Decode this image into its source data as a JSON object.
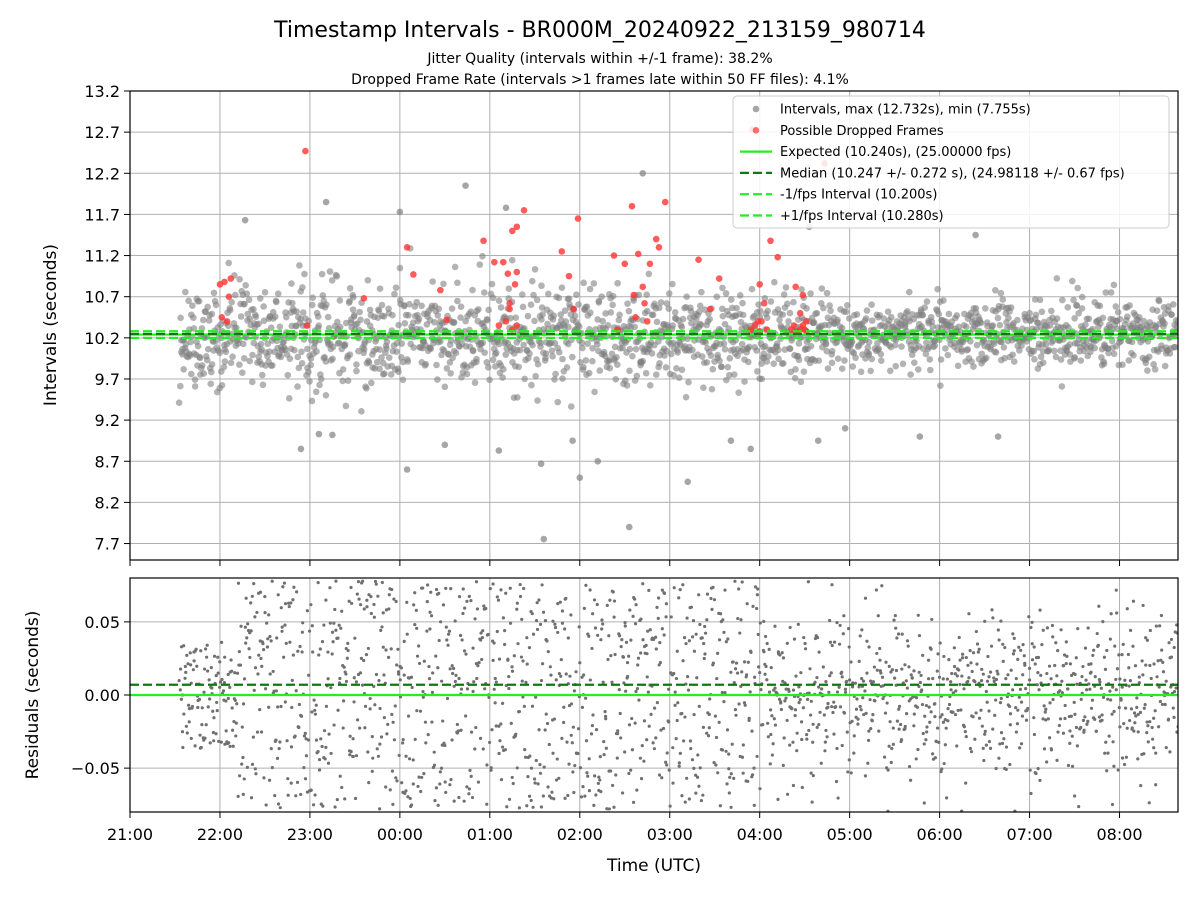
{
  "figure": {
    "title": "Timestamp Intervals - BR000M_20240922_213159_980714",
    "subtitle_1": "Jitter Quality (intervals within +/-1 frame): 38.2%",
    "subtitle_2": "Dropped Frame Rate (intervals >1 frames late within 50 FF files): 4.1%"
  },
  "colors": {
    "intervals": "#808080",
    "dropped": "#ff3333",
    "expected": "#22ee22",
    "median": "#117711",
    "grid": "#b0b0b0"
  },
  "chart_data": [
    {
      "type": "scatter",
      "ylabel": "Intervals (seconds)",
      "ylim": [
        7.5,
        13.2
      ],
      "yticks": [
        "7.7",
        "8.2",
        "8.7",
        "9.2",
        "9.7",
        "10.2",
        "10.7",
        "11.2",
        "11.7",
        "12.2",
        "12.7",
        "13.2"
      ],
      "x_unit": "hours since 21:00 UTC",
      "xlim": [
        0,
        11.65
      ],
      "grid": true,
      "legend_position": "top-right",
      "legend": [
        {
          "label": "Intervals, max (12.732s), min (7.755s)",
          "kind": "marker",
          "color": "#808080"
        },
        {
          "label": "Possible Dropped Frames",
          "kind": "marker",
          "color": "#ff3333"
        },
        {
          "label": "Expected (10.240s), (25.00000 fps)",
          "kind": "solid",
          "color": "#22ee22"
        },
        {
          "label": "Median (10.247 +/- 0.272 s), (24.98118 +/- 0.67 fps)",
          "kind": "dashed",
          "color": "#117711"
        },
        {
          "label": "-1/fps Interval (10.200s)",
          "kind": "dashed",
          "color": "#22ee22"
        },
        {
          "label": "+1/fps Interval (10.280s)",
          "kind": "dashed",
          "color": "#22ee22"
        }
      ],
      "series": [
        {
          "name": "Intervals",
          "point_count_approx": 1900,
          "x_range": [
            0.55,
            11.65
          ],
          "center": 10.24,
          "spread": 0.3,
          "max": 12.732,
          "min": 7.755,
          "sample_points": [
            {
              "x": 1.28,
              "y": 11.63
            },
            {
              "x": 1.9,
              "y": 8.85
            },
            {
              "x": 2.1,
              "y": 9.03
            },
            {
              "x": 2.18,
              "y": 11.85
            },
            {
              "x": 2.25,
              "y": 9.02
            },
            {
              "x": 3.0,
              "y": 11.73
            },
            {
              "x": 3.08,
              "y": 8.6
            },
            {
              "x": 3.5,
              "y": 8.9
            },
            {
              "x": 3.73,
              "y": 12.05
            },
            {
              "x": 4.1,
              "y": 8.83
            },
            {
              "x": 4.18,
              "y": 11.78
            },
            {
              "x": 4.57,
              "y": 8.67
            },
            {
              "x": 4.6,
              "y": 7.755
            },
            {
              "x": 4.92,
              "y": 8.95
            },
            {
              "x": 5.0,
              "y": 8.5
            },
            {
              "x": 5.2,
              "y": 8.7
            },
            {
              "x": 5.55,
              "y": 7.9
            },
            {
              "x": 5.7,
              "y": 12.2
            },
            {
              "x": 6.2,
              "y": 8.45
            },
            {
              "x": 6.68,
              "y": 8.95
            },
            {
              "x": 6.9,
              "y": 8.85
            },
            {
              "x": 7.55,
              "y": 11.55
            },
            {
              "x": 7.65,
              "y": 8.95
            },
            {
              "x": 7.95,
              "y": 9.1
            },
            {
              "x": 8.78,
              "y": 9.0
            },
            {
              "x": 9.4,
              "y": 11.45
            },
            {
              "x": 9.65,
              "y": 9.0
            }
          ]
        },
        {
          "name": "Possible Dropped Frames",
          "points": [
            {
              "x": 1.0,
              "y": 10.85
            },
            {
              "x": 1.05,
              "y": 10.88
            },
            {
              "x": 1.12,
              "y": 10.92
            },
            {
              "x": 1.02,
              "y": 10.45
            },
            {
              "x": 1.1,
              "y": 10.7
            },
            {
              "x": 1.08,
              "y": 10.4
            },
            {
              "x": 1.95,
              "y": 12.47
            },
            {
              "x": 1.97,
              "y": 10.35
            },
            {
              "x": 2.6,
              "y": 10.68
            },
            {
              "x": 3.08,
              "y": 11.3
            },
            {
              "x": 3.15,
              "y": 10.97
            },
            {
              "x": 3.45,
              "y": 10.78
            },
            {
              "x": 3.52,
              "y": 10.42
            },
            {
              "x": 3.93,
              "y": 11.38
            },
            {
              "x": 4.05,
              "y": 11.12
            },
            {
              "x": 4.15,
              "y": 11.12
            },
            {
              "x": 4.2,
              "y": 10.98
            },
            {
              "x": 4.22,
              "y": 10.62
            },
            {
              "x": 4.25,
              "y": 11.5
            },
            {
              "x": 4.3,
              "y": 11.55
            },
            {
              "x": 4.38,
              "y": 11.75
            },
            {
              "x": 4.1,
              "y": 10.35
            },
            {
              "x": 4.18,
              "y": 10.4
            },
            {
              "x": 4.25,
              "y": 10.3
            },
            {
              "x": 4.3,
              "y": 10.35
            },
            {
              "x": 4.22,
              "y": 10.55
            },
            {
              "x": 4.28,
              "y": 10.85
            },
            {
              "x": 4.3,
              "y": 11.0
            },
            {
              "x": 4.8,
              "y": 11.25
            },
            {
              "x": 4.88,
              "y": 10.95
            },
            {
              "x": 4.93,
              "y": 10.55
            },
            {
              "x": 4.98,
              "y": 11.65
            },
            {
              "x": 5.38,
              "y": 11.2
            },
            {
              "x": 5.42,
              "y": 10.3
            },
            {
              "x": 5.5,
              "y": 11.1
            },
            {
              "x": 5.58,
              "y": 11.8
            },
            {
              "x": 5.6,
              "y": 10.72
            },
            {
              "x": 5.7,
              "y": 10.82
            },
            {
              "x": 5.72,
              "y": 10.62
            },
            {
              "x": 5.75,
              "y": 10.4
            },
            {
              "x": 5.78,
              "y": 11.1
            },
            {
              "x": 5.85,
              "y": 11.4
            },
            {
              "x": 5.95,
              "y": 11.85
            },
            {
              "x": 5.88,
              "y": 11.3
            },
            {
              "x": 5.65,
              "y": 11.22
            },
            {
              "x": 5.62,
              "y": 10.45
            },
            {
              "x": 6.32,
              "y": 11.15
            },
            {
              "x": 6.45,
              "y": 10.55
            },
            {
              "x": 6.55,
              "y": 10.92
            },
            {
              "x": 6.92,
              "y": 12.732
            },
            {
              "x": 6.98,
              "y": 10.4
            },
            {
              "x": 7.0,
              "y": 10.85
            },
            {
              "x": 7.05,
              "y": 10.62
            },
            {
              "x": 7.12,
              "y": 11.38
            },
            {
              "x": 7.2,
              "y": 11.18
            },
            {
              "x": 7.4,
              "y": 10.82
            },
            {
              "x": 7.48,
              "y": 10.72
            },
            {
              "x": 7.45,
              "y": 10.5
            },
            {
              "x": 7.52,
              "y": 10.4
            },
            {
              "x": 7.72,
              "y": 12.32
            },
            {
              "x": 6.9,
              "y": 10.3
            },
            {
              "x": 6.95,
              "y": 10.35
            },
            {
              "x": 7.0,
              "y": 10.28
            },
            {
              "x": 7.02,
              "y": 10.4
            },
            {
              "x": 7.08,
              "y": 10.3
            },
            {
              "x": 7.35,
              "y": 10.3
            },
            {
              "x": 7.38,
              "y": 10.35
            },
            {
              "x": 7.42,
              "y": 10.28
            },
            {
              "x": 7.45,
              "y": 10.3
            },
            {
              "x": 7.48,
              "y": 10.35
            },
            {
              "x": 7.5,
              "y": 10.3
            },
            {
              "x": 7.52,
              "y": 10.28
            }
          ]
        }
      ],
      "hlines": [
        {
          "name": "Expected",
          "y": 10.24,
          "style": "solid"
        },
        {
          "name": "Median",
          "y": 10.247,
          "style": "dashed"
        },
        {
          "name": "-1/fps Interval",
          "y": 10.2,
          "style": "dashed"
        },
        {
          "name": "+1/fps Interval",
          "y": 10.28,
          "style": "dashed"
        }
      ]
    },
    {
      "type": "scatter",
      "ylabel": "Residuals (seconds)",
      "xlabel": "Time (UTC)",
      "ylim": [
        -0.08,
        0.08
      ],
      "yticks": [
        "−0.05",
        "0.00",
        "0.05"
      ],
      "ytick_values": [
        -0.05,
        0.0,
        0.05
      ],
      "x_unit": "hours since 21:00 UTC",
      "xlim": [
        0,
        11.65
      ],
      "xticks": [
        "21:00",
        "22:00",
        "23:00",
        "00:00",
        "01:00",
        "02:00",
        "03:00",
        "04:00",
        "05:00",
        "06:00",
        "07:00",
        "08:00"
      ],
      "grid": true,
      "series": [
        {
          "name": "Residuals",
          "point_count_approx": 1900,
          "x_range": [
            0.55,
            11.65
          ]
        }
      ],
      "hlines": [
        {
          "name": "Expected",
          "y": 0.0,
          "style": "solid"
        },
        {
          "name": "Median",
          "y": 0.007,
          "style": "dashed"
        }
      ]
    }
  ]
}
